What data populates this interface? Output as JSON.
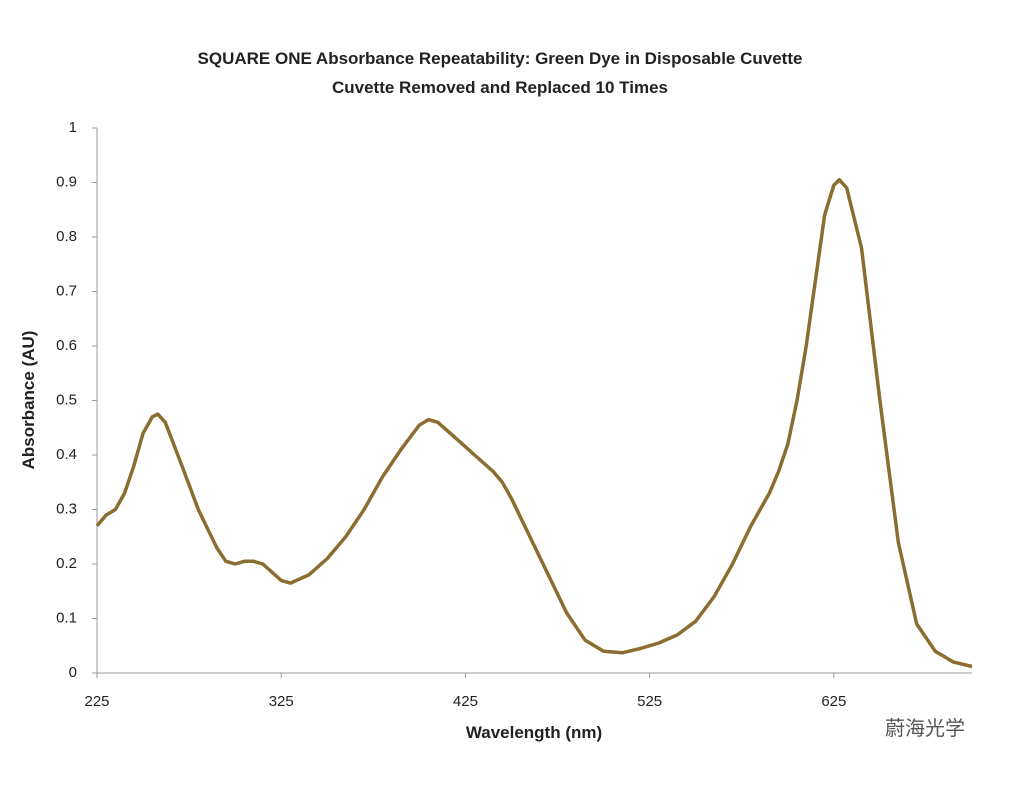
{
  "chart_data": {
    "type": "line",
    "title": "SQUARE ONE Absorbance Repeatability: Green Dye in Disposable Cuvette",
    "subtitle": "Cuvette Removed and Replaced 10 Times",
    "x_label": "Wavelength (nm)",
    "y_label": "Absorbance (AU)",
    "watermark": "蔚海光学",
    "x": [
      225,
      230,
      235,
      240,
      245,
      250,
      255,
      258,
      262,
      270,
      280,
      290,
      295,
      300,
      305,
      310,
      315,
      320,
      325,
      330,
      340,
      350,
      360,
      370,
      380,
      390,
      400,
      405,
      410,
      420,
      430,
      440,
      445,
      450,
      460,
      470,
      480,
      490,
      500,
      510,
      520,
      530,
      540,
      550,
      560,
      570,
      580,
      590,
      595,
      600,
      605,
      610,
      615,
      620,
      625,
      628,
      632,
      640,
      650,
      660,
      670,
      680,
      690,
      700
    ],
    "values": [
      0.27,
      0.29,
      0.3,
      0.33,
      0.38,
      0.44,
      0.47,
      0.475,
      0.46,
      0.39,
      0.3,
      0.23,
      0.205,
      0.2,
      0.205,
      0.205,
      0.2,
      0.185,
      0.17,
      0.165,
      0.18,
      0.21,
      0.25,
      0.3,
      0.36,
      0.41,
      0.455,
      0.465,
      0.46,
      0.43,
      0.4,
      0.37,
      0.35,
      0.32,
      0.25,
      0.18,
      0.11,
      0.06,
      0.04,
      0.037,
      0.045,
      0.055,
      0.07,
      0.095,
      0.14,
      0.2,
      0.27,
      0.33,
      0.37,
      0.42,
      0.5,
      0.6,
      0.72,
      0.84,
      0.895,
      0.905,
      0.89,
      0.78,
      0.5,
      0.24,
      0.09,
      0.04,
      0.02,
      0.012
    ],
    "color": "#8a6d2f",
    "xlim": [
      225,
      700
    ],
    "ylim": [
      0,
      1
    ],
    "xticks": [
      225,
      325,
      425,
      525,
      625
    ],
    "yticks": [
      0,
      0.1,
      0.2,
      0.3,
      0.4,
      0.5,
      0.6,
      0.7,
      0.8,
      0.9,
      1
    ],
    "grid": false
  }
}
